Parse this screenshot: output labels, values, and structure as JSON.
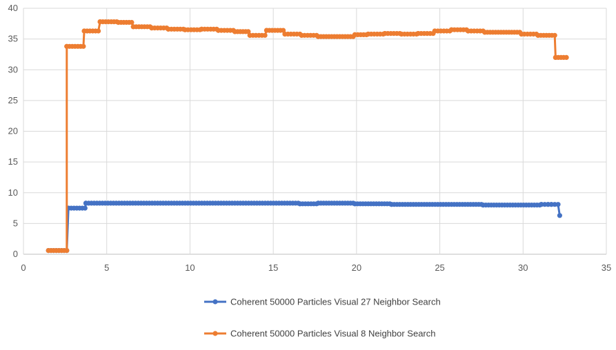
{
  "chart_data": {
    "type": "line",
    "xlim": [
      0,
      35
    ],
    "ylim": [
      0,
      40
    ],
    "x_ticks": [
      0,
      5,
      10,
      15,
      20,
      25,
      30,
      35
    ],
    "y_ticks": [
      0,
      5,
      10,
      15,
      20,
      25,
      30,
      35,
      40
    ],
    "grid": true,
    "legend_position": "bottom",
    "series": [
      {
        "name": "Coherent 50000 Particles Visual 27 Neighbor Search",
        "color": "#4472C4",
        "marker": "circle",
        "step": true,
        "points": [
          [
            1.5,
            0.6
          ],
          [
            2.6,
            0.6
          ],
          [
            2.7,
            7.5
          ],
          [
            3.7,
            7.5
          ],
          [
            3.75,
            8.3
          ],
          [
            16.5,
            8.3
          ],
          [
            16.6,
            8.2
          ],
          [
            17.6,
            8.2
          ],
          [
            17.7,
            8.3
          ],
          [
            19.8,
            8.3
          ],
          [
            19.9,
            8.2
          ],
          [
            22.0,
            8.2
          ],
          [
            22.1,
            8.1
          ],
          [
            27.5,
            8.1
          ],
          [
            27.6,
            8.0
          ],
          [
            31.0,
            8.0
          ],
          [
            31.1,
            8.1
          ],
          [
            31.5,
            8.1
          ],
          [
            31.7,
            8.1
          ],
          [
            32.1,
            8.1
          ],
          [
            32.2,
            6.3
          ]
        ]
      },
      {
        "name": "Coherent 50000 Particles Visual 8 Neighbor Search",
        "color": "#ED7D31",
        "marker": "circle",
        "step": true,
        "points": [
          [
            1.5,
            0.6
          ],
          [
            2.6,
            0.6
          ],
          [
            2.6,
            33.8
          ],
          [
            3.6,
            33.8
          ],
          [
            3.65,
            36.3
          ],
          [
            4.5,
            36.3
          ],
          [
            4.6,
            37.8
          ],
          [
            5.6,
            37.8
          ],
          [
            5.7,
            37.7
          ],
          [
            6.5,
            37.7
          ],
          [
            6.6,
            37.0
          ],
          [
            7.6,
            37.0
          ],
          [
            7.7,
            36.8
          ],
          [
            8.6,
            36.8
          ],
          [
            8.7,
            36.6
          ],
          [
            9.6,
            36.6
          ],
          [
            9.7,
            36.5
          ],
          [
            10.6,
            36.5
          ],
          [
            10.7,
            36.6
          ],
          [
            11.6,
            36.6
          ],
          [
            11.7,
            36.4
          ],
          [
            12.6,
            36.4
          ],
          [
            12.7,
            36.2
          ],
          [
            13.5,
            36.2
          ],
          [
            13.6,
            35.6
          ],
          [
            14.5,
            35.6
          ],
          [
            14.6,
            36.4
          ],
          [
            15.6,
            36.4
          ],
          [
            15.7,
            35.8
          ],
          [
            16.6,
            35.8
          ],
          [
            16.7,
            35.6
          ],
          [
            17.6,
            35.6
          ],
          [
            17.7,
            35.4
          ],
          [
            19.8,
            35.4
          ],
          [
            19.9,
            35.7
          ],
          [
            20.6,
            35.7
          ],
          [
            20.7,
            35.8
          ],
          [
            21.6,
            35.8
          ],
          [
            21.7,
            35.9
          ],
          [
            22.6,
            35.9
          ],
          [
            22.7,
            35.8
          ],
          [
            23.6,
            35.8
          ],
          [
            23.7,
            35.9
          ],
          [
            24.6,
            35.9
          ],
          [
            24.7,
            36.3
          ],
          [
            25.6,
            36.3
          ],
          [
            25.7,
            36.5
          ],
          [
            26.6,
            36.5
          ],
          [
            26.7,
            36.3
          ],
          [
            27.6,
            36.3
          ],
          [
            27.7,
            36.1
          ],
          [
            29.8,
            36.1
          ],
          [
            29.9,
            35.8
          ],
          [
            30.8,
            35.8
          ],
          [
            30.9,
            35.6
          ],
          [
            31.9,
            35.6
          ],
          [
            31.95,
            32.0
          ],
          [
            32.6,
            32.0
          ]
        ]
      }
    ]
  }
}
